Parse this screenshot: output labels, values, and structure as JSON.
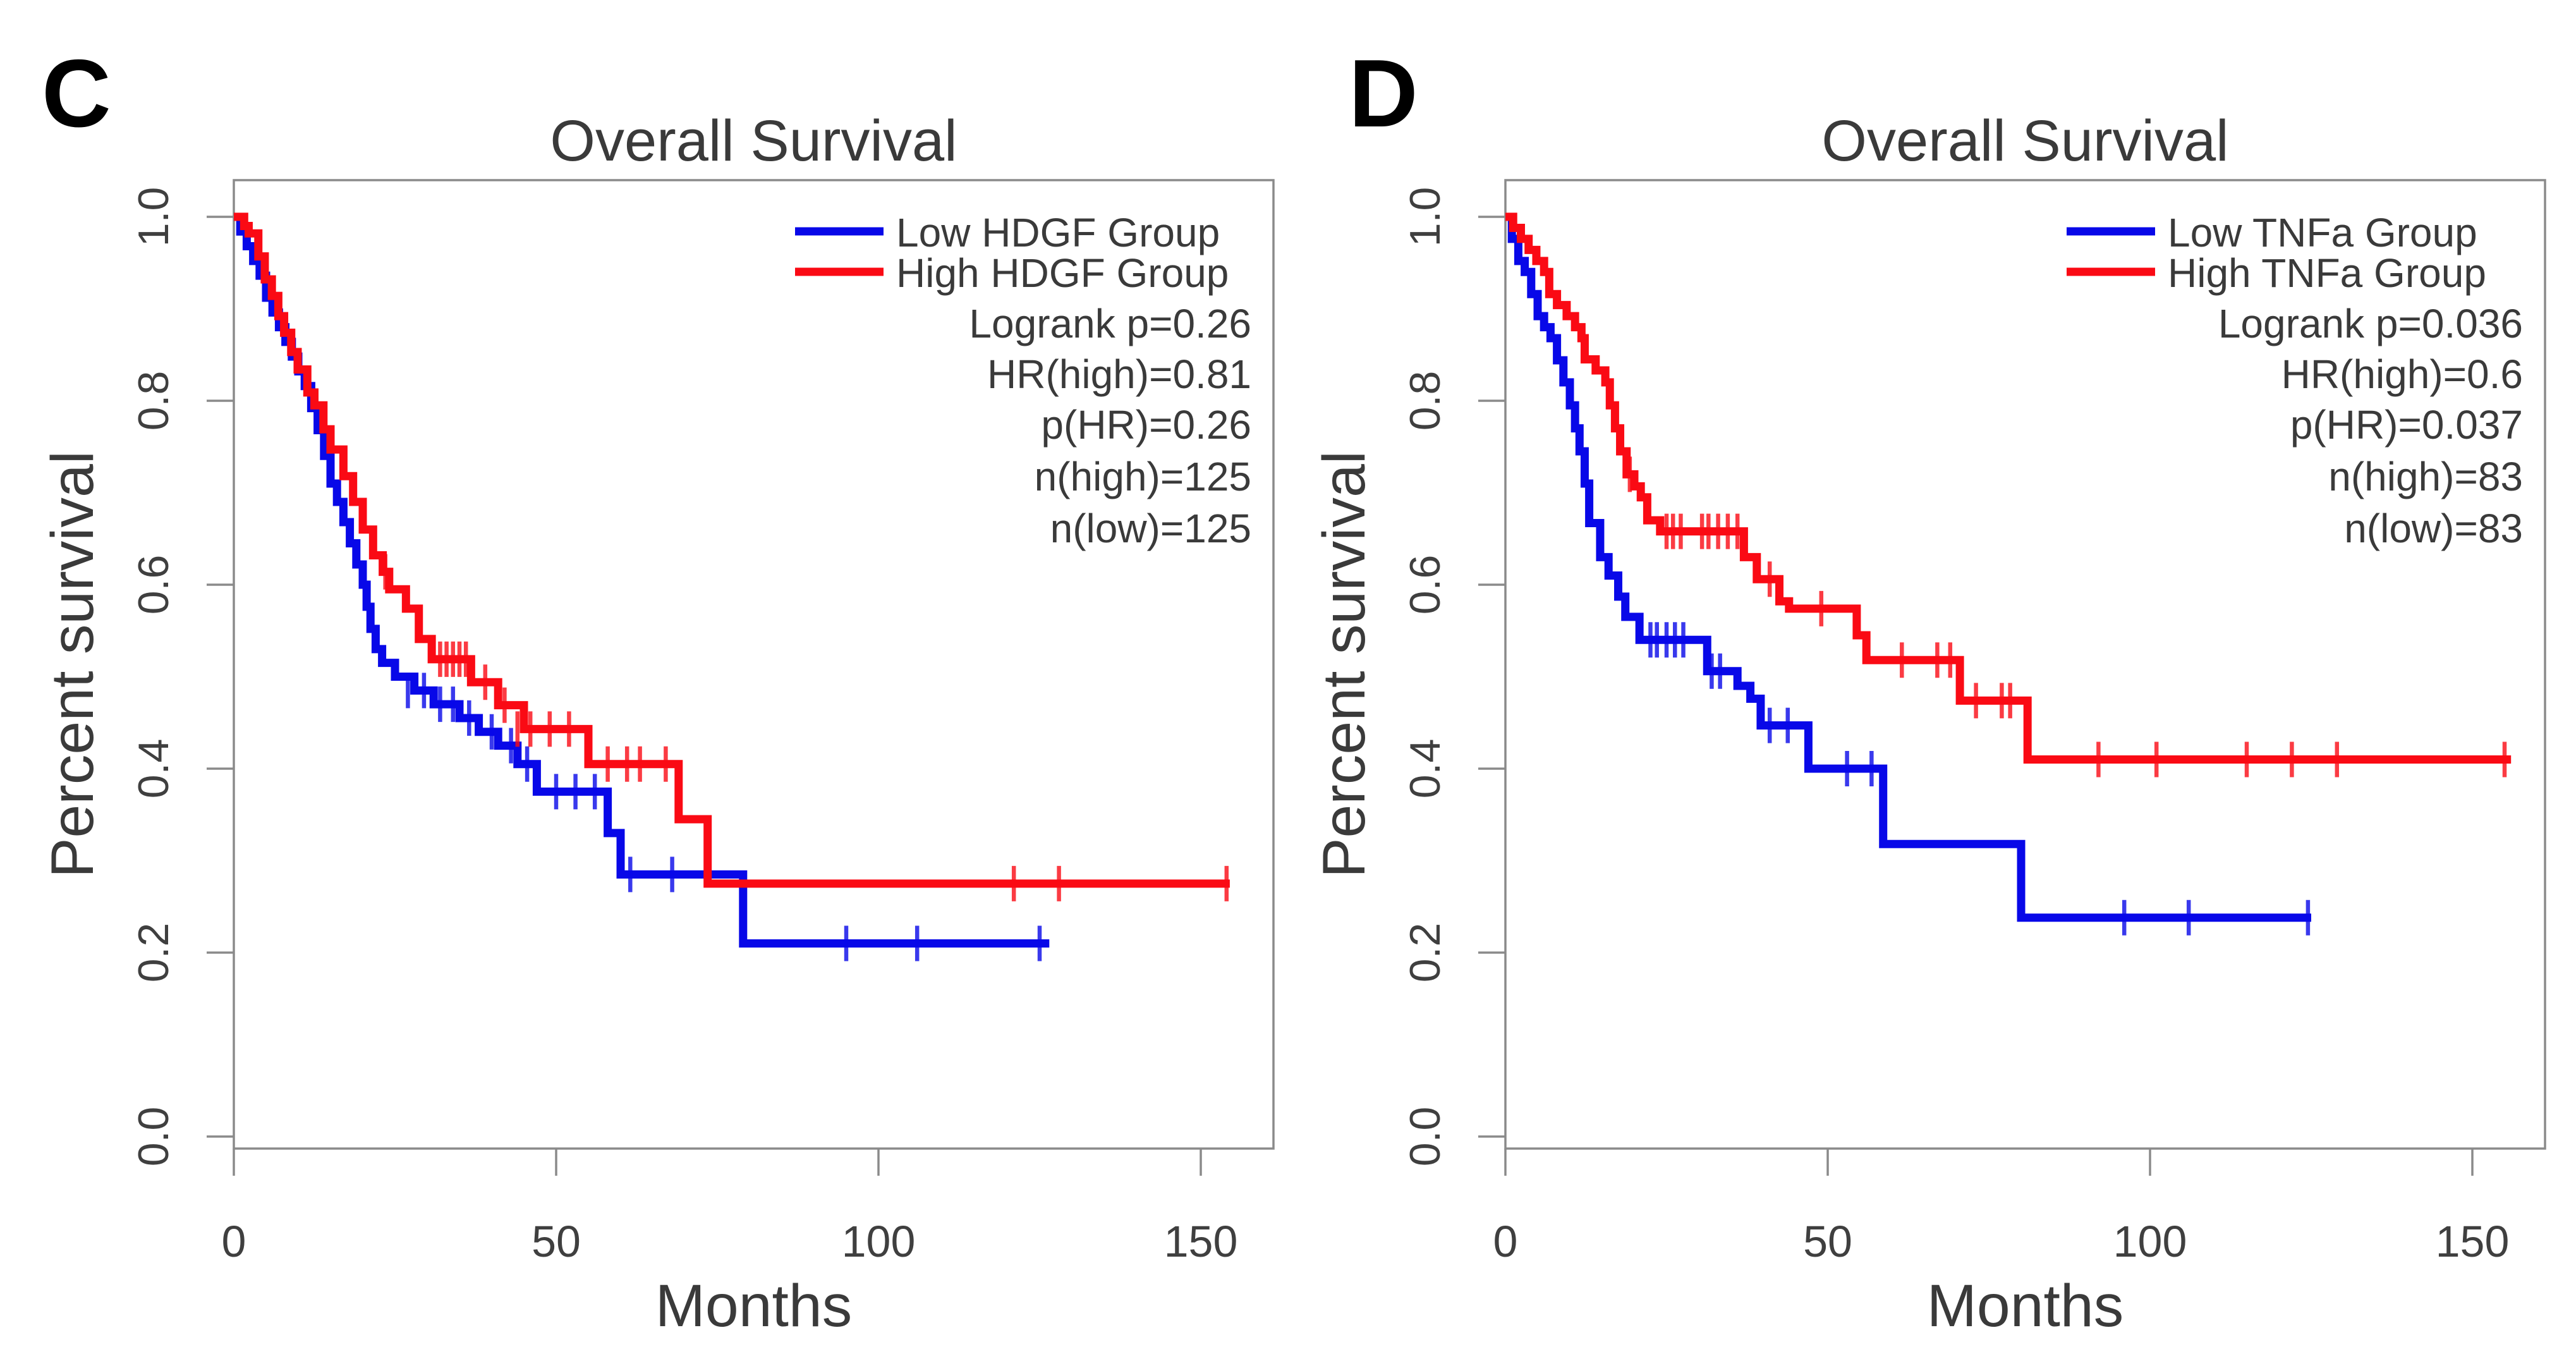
{
  "style": {
    "background": "#ffffff",
    "frame_color": "#8a8a8a",
    "text_color": "#3a3a3a",
    "tick_label_color": "#3f3f3f",
    "panel_letter_color": "#000000",
    "blue": "#0808e8",
    "red": "#fa0a14"
  },
  "chart_data": [
    {
      "type": "line",
      "subtype": "kaplan-meier-step",
      "panel_label": "C",
      "title": "Overall Survival",
      "xlabel": "Months",
      "ylabel": "Percent survival",
      "xlim": [
        0,
        161
      ],
      "ylim": [
        0.0,
        1.0
      ],
      "xticks": [
        0,
        50,
        100,
        150
      ],
      "ytick_labels": [
        "1.0",
        "0.8",
        "0.6",
        "0.4",
        "0.2",
        "0.0"
      ],
      "ytick_values": [
        1.0,
        0.8,
        0.6,
        0.4,
        0.2,
        0.0
      ],
      "grid": false,
      "legend_position": "top-right",
      "stats": [
        "Logrank p=0.26",
        "HR(high)=0.81",
        "p(HR)=0.26",
        "n(high)=125",
        "n(low)=125"
      ],
      "series": [
        {
          "name": "Low HDGF Group",
          "color": "#0808e8",
          "end_x": 126.5,
          "steps": [
            [
              0,
              1.0
            ],
            [
              1,
              0.984
            ],
            [
              2,
              0.968
            ],
            [
              3,
              0.952
            ],
            [
              4,
              0.936
            ],
            [
              5,
              0.912
            ],
            [
              6,
              0.896
            ],
            [
              7,
              0.88
            ],
            [
              8,
              0.864
            ],
            [
              9,
              0.848
            ],
            [
              10,
              0.832
            ],
            [
              11,
              0.816
            ],
            [
              12,
              0.792
            ],
            [
              13,
              0.768
            ],
            [
              14,
              0.74
            ],
            [
              15,
              0.71
            ],
            [
              16,
              0.69
            ],
            [
              17,
              0.668
            ],
            [
              18,
              0.645
            ],
            [
              19,
              0.622
            ],
            [
              20,
              0.6
            ],
            [
              20.6,
              0.576
            ],
            [
              21.2,
              0.552
            ],
            [
              22,
              0.53
            ],
            [
              23,
              0.515
            ],
            [
              25,
              0.5
            ],
            [
              28,
              0.485
            ],
            [
              31,
              0.47
            ],
            [
              35,
              0.455
            ],
            [
              38,
              0.44
            ],
            [
              41,
              0.425
            ],
            [
              44,
              0.405
            ],
            [
              47,
              0.375
            ],
            [
              58,
              0.33
            ],
            [
              60,
              0.285
            ],
            [
              79,
              0.21
            ]
          ],
          "censors": [
            [
              27,
              0.485
            ],
            [
              29.5,
              0.485
            ],
            [
              32,
              0.47
            ],
            [
              34,
              0.47
            ],
            [
              36.5,
              0.455
            ],
            [
              40,
              0.44
            ],
            [
              43,
              0.425
            ],
            [
              45.5,
              0.405
            ],
            [
              50,
              0.375
            ],
            [
              53,
              0.375
            ],
            [
              56,
              0.375
            ],
            [
              61.5,
              0.285
            ],
            [
              68,
              0.285
            ],
            [
              95,
              0.21
            ],
            [
              106,
              0.21
            ],
            [
              125,
              0.21
            ]
          ]
        },
        {
          "name": "High HDGF Group",
          "color": "#fa0a14",
          "end_x": 154.5,
          "steps": [
            [
              0,
              1.0
            ],
            [
              1.6,
              0.99
            ],
            [
              2.3,
              0.982
            ],
            [
              3.8,
              0.957
            ],
            [
              4.8,
              0.932
            ],
            [
              5.9,
              0.914
            ],
            [
              6.9,
              0.892
            ],
            [
              7.8,
              0.874
            ],
            [
              8.9,
              0.853
            ],
            [
              9.9,
              0.834
            ],
            [
              11.4,
              0.809
            ],
            [
              12.5,
              0.795
            ],
            [
              13.9,
              0.769
            ],
            [
              15,
              0.747
            ],
            [
              17,
              0.718
            ],
            [
              18.5,
              0.69
            ],
            [
              20,
              0.66
            ],
            [
              21.6,
              0.632
            ],
            [
              23.1,
              0.614
            ],
            [
              24.1,
              0.595
            ],
            [
              26.7,
              0.574
            ],
            [
              28.7,
              0.541
            ],
            [
              30.7,
              0.519
            ],
            [
              36.8,
              0.494
            ],
            [
              41,
              0.469
            ],
            [
              45,
              0.443
            ],
            [
              55,
              0.405
            ],
            [
              69,
              0.345
            ],
            [
              73.5,
              0.275
            ]
          ],
          "censors": [
            [
              23.5,
              0.614
            ],
            [
              32,
              0.519
            ],
            [
              33,
              0.519
            ],
            [
              34,
              0.519
            ],
            [
              35,
              0.519
            ],
            [
              36,
              0.519
            ],
            [
              39,
              0.494
            ],
            [
              42,
              0.469
            ],
            [
              44,
              0.443
            ],
            [
              46,
              0.443
            ],
            [
              49,
              0.443
            ],
            [
              52,
              0.443
            ],
            [
              58,
              0.405
            ],
            [
              61,
              0.405
            ],
            [
              63,
              0.405
            ],
            [
              67,
              0.405
            ],
            [
              121,
              0.275
            ],
            [
              128,
              0.275
            ],
            [
              154,
              0.275
            ]
          ]
        }
      ]
    },
    {
      "type": "line",
      "subtype": "kaplan-meier-step",
      "panel_label": "D",
      "title": "Overall Survival",
      "xlabel": "Months",
      "ylabel": "Percent survival",
      "xlim": [
        0,
        161
      ],
      "ylim": [
        0.0,
        1.0
      ],
      "xticks": [
        0,
        50,
        100,
        150
      ],
      "ytick_labels": [
        "1.0",
        "0.8",
        "0.6",
        "0.4",
        "0.2",
        "0.0"
      ],
      "ytick_values": [
        1.0,
        0.8,
        0.6,
        0.4,
        0.2,
        0.0
      ],
      "grid": false,
      "legend_position": "top-right",
      "stats": [
        "Logrank p=0.036",
        "HR(high)=0.6",
        "p(HR)=0.037",
        "n(high)=83",
        "n(low)=83"
      ],
      "series": [
        {
          "name": "Low TNFa Group",
          "color": "#0808e8",
          "end_x": 125,
          "steps": [
            [
              0,
              1.0
            ],
            [
              1,
              0.976
            ],
            [
              2,
              0.952
            ],
            [
              3,
              0.94
            ],
            [
              4,
              0.916
            ],
            [
              5,
              0.892
            ],
            [
              6,
              0.88
            ],
            [
              7,
              0.868
            ],
            [
              8,
              0.844
            ],
            [
              9,
              0.82
            ],
            [
              10,
              0.795
            ],
            [
              10.8,
              0.77
            ],
            [
              11.5,
              0.745
            ],
            [
              12.3,
              0.71
            ],
            [
              13,
              0.667
            ],
            [
              14.7,
              0.63
            ],
            [
              16,
              0.61
            ],
            [
              17.5,
              0.587
            ],
            [
              18.6,
              0.565
            ],
            [
              20.8,
              0.54
            ],
            [
              31.3,
              0.506
            ],
            [
              36,
              0.49
            ],
            [
              38,
              0.476
            ],
            [
              39.6,
              0.447
            ],
            [
              47,
              0.4
            ],
            [
              58.6,
              0.318
            ],
            [
              80,
              0.238
            ]
          ],
          "censors": [
            [
              22.5,
              0.54
            ],
            [
              23.5,
              0.54
            ],
            [
              25,
              0.54
            ],
            [
              26.3,
              0.54
            ],
            [
              27.6,
              0.54
            ],
            [
              32,
              0.506
            ],
            [
              33.3,
              0.506
            ],
            [
              41,
              0.447
            ],
            [
              43.8,
              0.447
            ],
            [
              53,
              0.4
            ],
            [
              56.8,
              0.4
            ],
            [
              96,
              0.238
            ],
            [
              106,
              0.238
            ],
            [
              124.5,
              0.238
            ]
          ]
        },
        {
          "name": "High TNFa Group",
          "color": "#fa0a14",
          "end_x": 156,
          "steps": [
            [
              0,
              1.0
            ],
            [
              1.2,
              0.988
            ],
            [
              2.4,
              0.976
            ],
            [
              3.6,
              0.964
            ],
            [
              4.8,
              0.952
            ],
            [
              6,
              0.94
            ],
            [
              6.8,
              0.916
            ],
            [
              8,
              0.904
            ],
            [
              9.5,
              0.892
            ],
            [
              10.8,
              0.88
            ],
            [
              11.8,
              0.868
            ],
            [
              12.3,
              0.845
            ],
            [
              14,
              0.833
            ],
            [
              15.5,
              0.82
            ],
            [
              16.2,
              0.795
            ],
            [
              17,
              0.77
            ],
            [
              17.8,
              0.745
            ],
            [
              18.8,
              0.72
            ],
            [
              20,
              0.707
            ],
            [
              21,
              0.695
            ],
            [
              22,
              0.67
            ],
            [
              24,
              0.658
            ],
            [
              37,
              0.63
            ],
            [
              39,
              0.606
            ],
            [
              42.5,
              0.582
            ],
            [
              44,
              0.574
            ],
            [
              54.5,
              0.545
            ],
            [
              56,
              0.518
            ],
            [
              70.5,
              0.474
            ],
            [
              81,
              0.41
            ]
          ],
          "censors": [
            [
              19.3,
              0.72
            ],
            [
              25,
              0.658
            ],
            [
              26,
              0.658
            ],
            [
              27.2,
              0.658
            ],
            [
              30.5,
              0.658
            ],
            [
              31.5,
              0.658
            ],
            [
              33,
              0.658
            ],
            [
              34.5,
              0.658
            ],
            [
              36,
              0.658
            ],
            [
              41,
              0.606
            ],
            [
              49,
              0.574
            ],
            [
              61.5,
              0.518
            ],
            [
              67,
              0.518
            ],
            [
              69,
              0.518
            ],
            [
              73,
              0.474
            ],
            [
              77,
              0.474
            ],
            [
              78.3,
              0.474
            ],
            [
              92,
              0.41
            ],
            [
              101,
              0.41
            ],
            [
              115,
              0.41
            ],
            [
              122,
              0.41
            ],
            [
              129,
              0.41
            ],
            [
              155,
              0.41
            ]
          ]
        }
      ]
    }
  ]
}
